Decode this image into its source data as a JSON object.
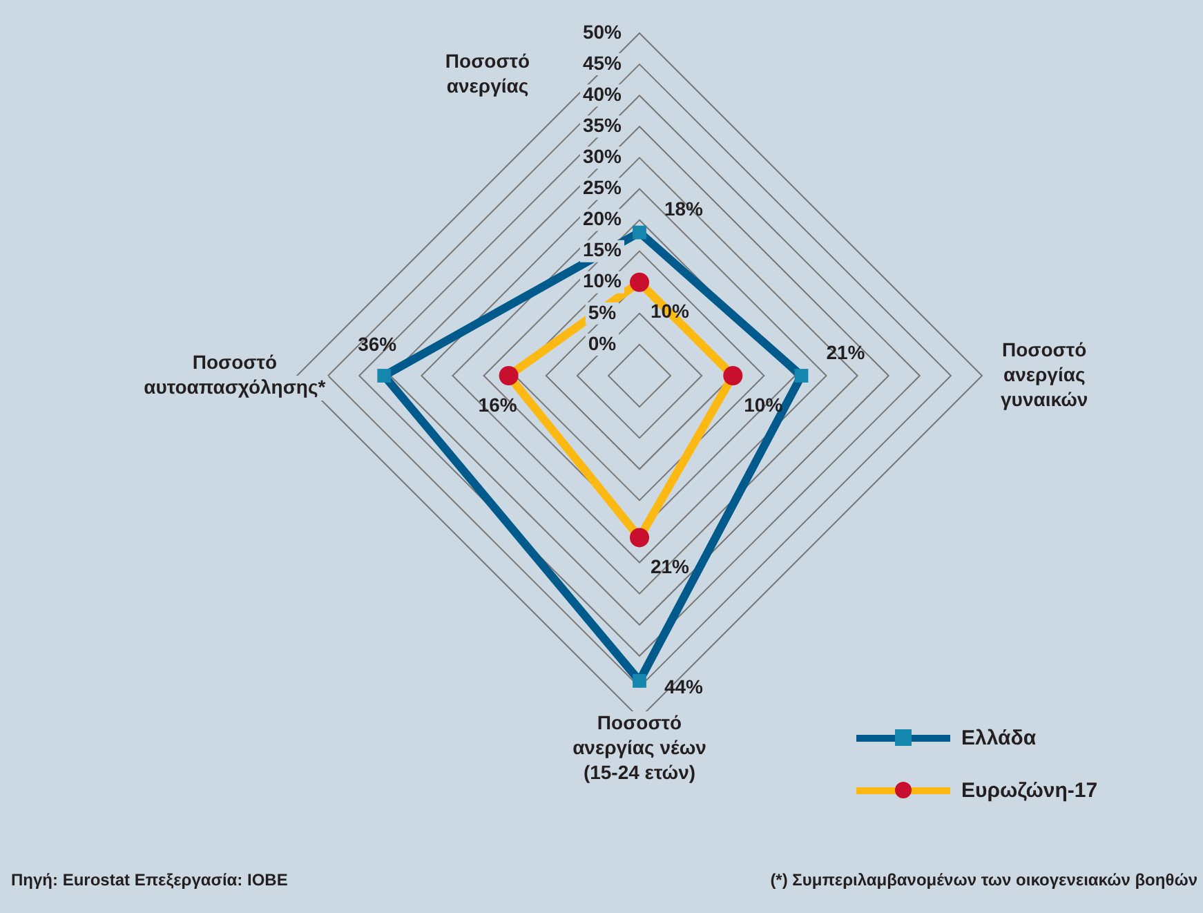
{
  "chart_data": {
    "type": "radar",
    "categories": [
      "Ποσοστό\nανεργίας",
      "Ποσοστό\nανεργίας\nγυναικών",
      "Ποσοστό\nανεργίας νέων\n(15-24 ετών)",
      "Ποσοστό\nαυτοαπασχόλησης*"
    ],
    "series": [
      {
        "name": "Ελλάδα",
        "color": "#005b8c",
        "colors": [
          "#1586ad",
          "#1586ad",
          "#1586ad",
          "#1586ad"
        ],
        "marker": "square",
        "values": [
          18,
          21,
          44,
          36
        ],
        "value_labels": [
          "18%",
          "21%",
          "44%",
          "36%"
        ]
      },
      {
        "name": "Ευρωζώνη-17",
        "color": "#fdb913",
        "colors": [
          "#c8102e",
          "#c8102e",
          "#c8102e",
          "#c8102e"
        ],
        "marker": "circle",
        "values": [
          10,
          10,
          21,
          16
        ],
        "value_labels": [
          "10%",
          "10%",
          "21%",
          "16%"
        ]
      }
    ],
    "ylim": [
      -5,
      50
    ],
    "yticks": [
      {
        "value": 0,
        "label": "0%"
      },
      {
        "value": 5,
        "label": "5%"
      },
      {
        "value": 10,
        "label": "10%"
      },
      {
        "value": 15,
        "label": "15%"
      },
      {
        "value": 20,
        "label": "20%"
      },
      {
        "value": 25,
        "label": "25%"
      },
      {
        "value": 30,
        "label": "30%"
      },
      {
        "value": 35,
        "label": "35%"
      },
      {
        "value": 40,
        "label": "40%"
      },
      {
        "value": 45,
        "label": "45%"
      },
      {
        "value": 50,
        "label": "50%"
      }
    ],
    "grid": true,
    "legend": "bottom right",
    "annotations": [
      "Πηγή: Eurostat Επεξεργασία: ΙΟΒΕ",
      "(*) Συμπεριλαμβανομένων των οικογενειακών βοηθών"
    ]
  }
}
